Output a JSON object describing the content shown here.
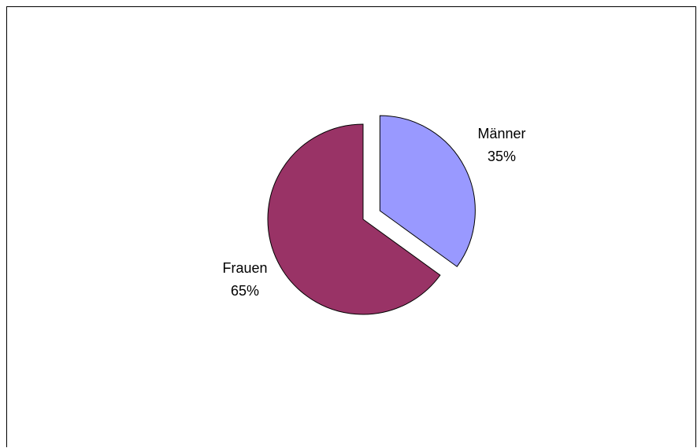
{
  "chart_data": {
    "type": "pie",
    "title": "",
    "slices": [
      {
        "name": "Männer",
        "percent_label": "35%",
        "value": 35,
        "color": "#9999ff",
        "exploded": true
      },
      {
        "name": "Frauen",
        "percent_label": "65%",
        "value": 65,
        "color": "#993366",
        "exploded": false
      }
    ],
    "legend": "none",
    "outline_color": "#000000"
  }
}
